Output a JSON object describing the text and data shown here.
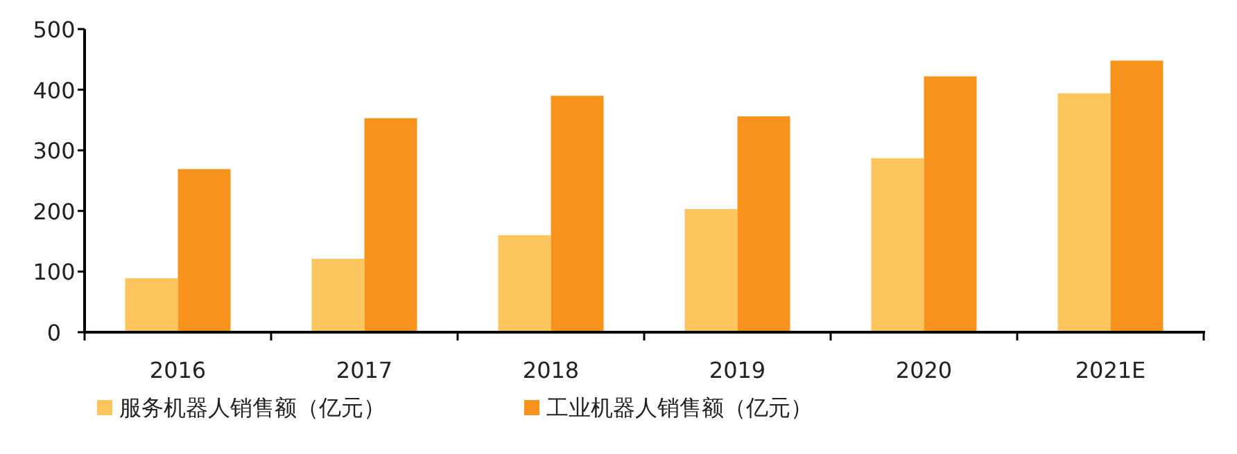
{
  "chart_data": {
    "type": "bar",
    "categories": [
      "2016",
      "2017",
      "2018",
      "2019",
      "2020",
      "2021E"
    ],
    "series": [
      {
        "name": "服务机器人销售额（亿元）",
        "color": "#fdc55e",
        "values": [
          89,
          121,
          160,
          203,
          287,
          394
        ]
      },
      {
        "name": "工业机器人销售额（亿元）",
        "color": "#f7931d",
        "values": [
          269,
          353,
          390,
          356,
          422,
          448
        ]
      }
    ],
    "ylim": [
      0,
      500
    ],
    "yticks": [
      0,
      100,
      200,
      300,
      400,
      500
    ],
    "grid": false,
    "legend": "bottom"
  }
}
